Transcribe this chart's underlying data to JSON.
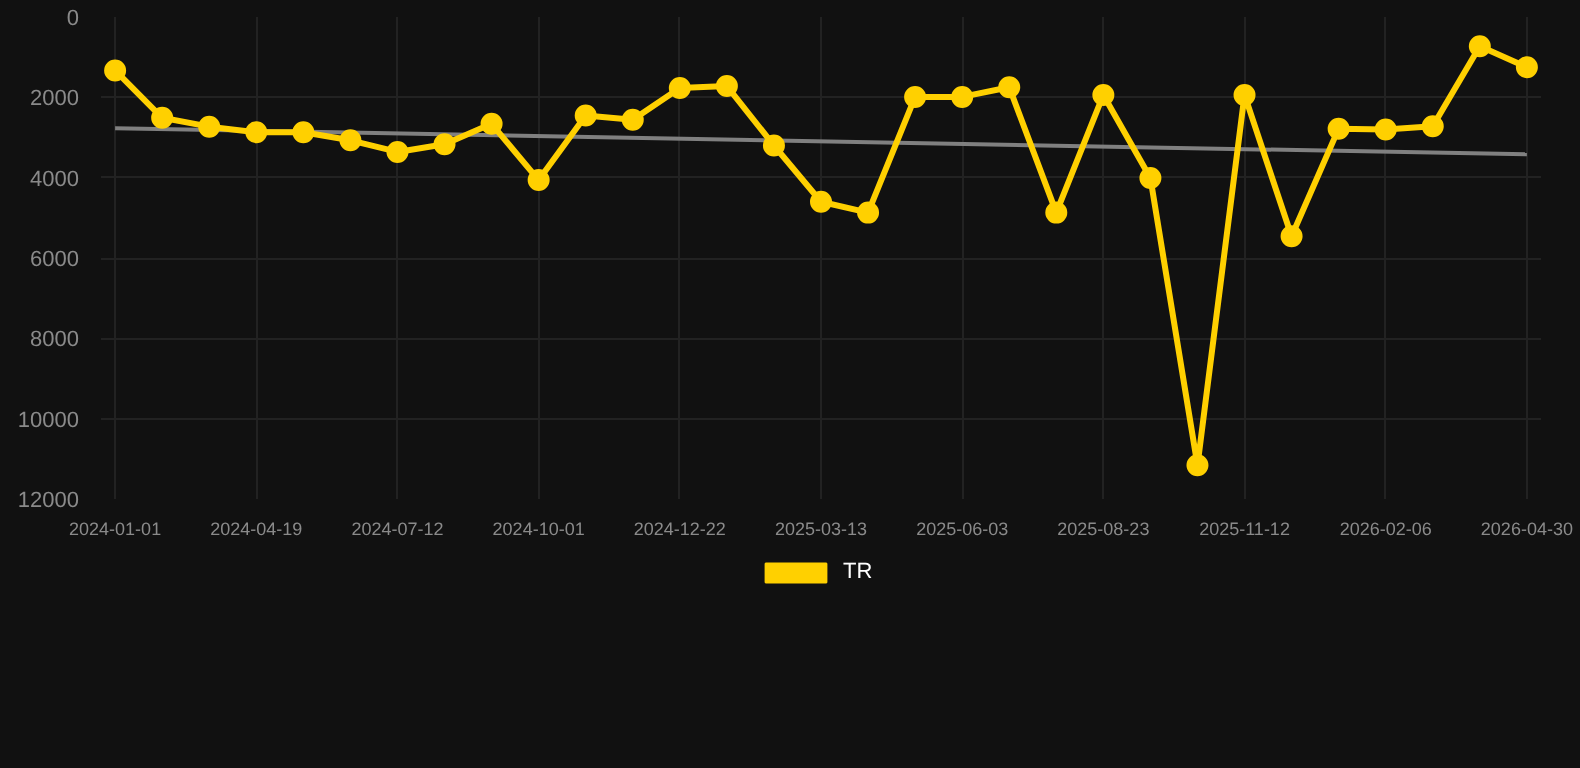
{
  "chart_data": {
    "type": "line",
    "categories": [
      "2024-01-01",
      null,
      null,
      "2024-04-19",
      null,
      null,
      "2024-07-12",
      null,
      null,
      "2024-10-01",
      null,
      null,
      "2024-12-22",
      null,
      null,
      "2025-03-13",
      null,
      null,
      "2025-06-03",
      null,
      null,
      "2025-08-23",
      null,
      null,
      "2025-11-12",
      null,
      null,
      "2026-02-06",
      null,
      null,
      "2026-04-30"
    ],
    "ylim": [
      12000,
      0
    ],
    "yticks": [
      0,
      2000,
      4000,
      6000,
      8000,
      10000,
      12000
    ],
    "grid": true,
    "legend": "bottom",
    "marker": "circle",
    "line_style": "solid",
    "series": [
      {
        "name": "TR",
        "color": "#ffd000",
        "values": [
          1330,
          2510,
          2730,
          2870,
          2870,
          3070,
          3360,
          3170,
          2660,
          4060,
          2450,
          2560,
          1770,
          1720,
          3200,
          4600,
          4870,
          1990,
          1990,
          1750,
          4870,
          1940,
          4010,
          11160,
          1940,
          5460,
          2780,
          2800,
          2720,
          730,
          1250
        ]
      },
      {
        "type": "line",
        "color": "#808080",
        "marker": "none",
        "values": [
          2770,
          null,
          null,
          null,
          null,
          null,
          null,
          null,
          null,
          null,
          null,
          null,
          null,
          null,
          null,
          null,
          null,
          null,
          null,
          null,
          null,
          null,
          null,
          null,
          null,
          null,
          null,
          null,
          null,
          null,
          3420
        ]
      }
    ]
  }
}
